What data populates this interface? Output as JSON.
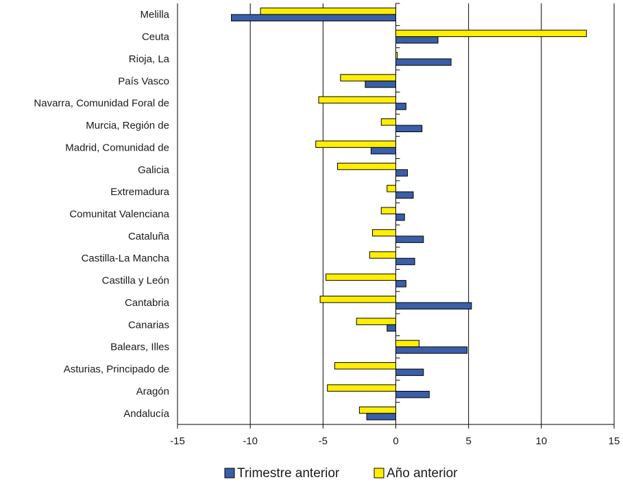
{
  "chart_data": {
    "type": "bar",
    "orientation": "horizontal",
    "title": "",
    "xlabel": "",
    "ylabel": "",
    "xlim": [
      -15,
      15
    ],
    "xticks": [
      -15,
      -10,
      -5,
      0,
      5,
      10,
      15
    ],
    "xtick_labels": [
      "-15",
      "-10",
      "-5",
      "0",
      "5",
      "10",
      "15"
    ],
    "grid": "vertical",
    "legend_position": "bottom",
    "categories": [
      "Melilla",
      "Ceuta",
      "Rioja, La",
      "País Vasco",
      "Navarra, Comunidad Foral de",
      "Murcia, Región de",
      "Madrid, Comunidad de",
      "Galicia",
      "Extremadura",
      "Comunitat Valenciana",
      "Cataluña",
      "Castilla-La Mancha",
      "Castilla y León",
      "Cantabria",
      "Canarias",
      "Balears, Illes",
      "Asturias, Principado de",
      "Aragón",
      "Andalucía"
    ],
    "series": [
      {
        "name": "Trimestre anterior",
        "color": "#3a5ea8",
        "values": [
          -11.3,
          2.9,
          3.8,
          -2.1,
          0.7,
          1.8,
          -1.7,
          0.8,
          1.2,
          0.6,
          1.9,
          1.3,
          0.7,
          5.2,
          -0.6,
          4.9,
          1.9,
          2.3,
          -2.0
        ]
      },
      {
        "name": "Año anterior",
        "color": "#ffee00",
        "values": [
          -9.3,
          13.1,
          0.1,
          -3.8,
          -5.3,
          -1.0,
          -5.5,
          -4.0,
          -0.6,
          -1.0,
          -1.6,
          -1.8,
          -4.8,
          -5.2,
          -2.7,
          1.6,
          -4.2,
          -4.7,
          -2.5
        ]
      }
    ]
  }
}
